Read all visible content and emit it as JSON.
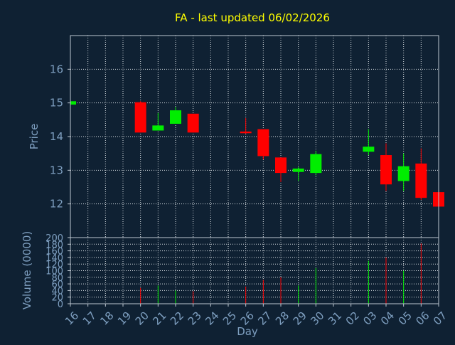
{
  "chart_data": {
    "type": "candlestick",
    "title": "FA - last updated 06/02/2026",
    "xlabel": "Day",
    "price_panel": {
      "ylabel": "Price",
      "ylim": [
        11.0,
        17.0
      ],
      "yticks": [
        12,
        13,
        14,
        15,
        16
      ]
    },
    "volume_panel": {
      "ylabel": "Volume (0000)",
      "ylim": [
        0,
        200
      ],
      "yticks": [
        0,
        20,
        40,
        60,
        80,
        100,
        120,
        140,
        160,
        180,
        200
      ]
    },
    "x_ticks": [
      "16",
      "17",
      "18",
      "19",
      "20",
      "21",
      "22",
      "23",
      "24",
      "25",
      "26",
      "27",
      "28",
      "29",
      "30",
      "31",
      "02",
      "03",
      "04",
      "05",
      "06",
      "07"
    ],
    "grid": true,
    "colors": {
      "up": "#00ee00",
      "down": "#ff0000",
      "title": "#ffff00",
      "axis_text": "#7e9fc0",
      "background": "#0f2133"
    },
    "candles": [
      {
        "slot": 0,
        "date": "16",
        "open": 14.95,
        "high": 15.05,
        "low": 14.95,
        "close": 15.05,
        "volume": 0
      },
      {
        "slot": 4,
        "date": "20",
        "open": 15.02,
        "high": 15.05,
        "low": 14.12,
        "close": 14.12,
        "volume": 48
      },
      {
        "slot": 5,
        "date": "21",
        "open": 14.18,
        "high": 14.7,
        "low": 14.18,
        "close": 14.33,
        "volume": 55
      },
      {
        "slot": 6,
        "date": "22",
        "open": 14.38,
        "high": 14.88,
        "low": 14.38,
        "close": 14.78,
        "volume": 40
      },
      {
        "slot": 7,
        "date": "23",
        "open": 14.68,
        "high": 14.68,
        "low": 14.12,
        "close": 14.12,
        "volume": 38
      },
      {
        "slot": 10,
        "date": "26",
        "open": 14.15,
        "high": 14.55,
        "low": 14.08,
        "close": 14.1,
        "volume": 52
      },
      {
        "slot": 11,
        "date": "27",
        "open": 14.22,
        "high": 14.22,
        "low": 13.32,
        "close": 13.42,
        "volume": 72
      },
      {
        "slot": 12,
        "date": "28",
        "open": 13.38,
        "high": 13.38,
        "low": 12.65,
        "close": 12.92,
        "volume": 80
      },
      {
        "slot": 13,
        "date": "29",
        "open": 12.95,
        "high": 13.1,
        "low": 12.68,
        "close": 13.05,
        "volume": 55
      },
      {
        "slot": 14,
        "date": "30",
        "open": 12.92,
        "high": 13.58,
        "low": 12.85,
        "close": 13.48,
        "volume": 108
      },
      {
        "slot": 17,
        "date": "02",
        "open": 13.55,
        "high": 14.22,
        "low": 13.45,
        "close": 13.7,
        "volume": 130
      },
      {
        "slot": 18,
        "date": "03",
        "open": 13.45,
        "high": 13.8,
        "low": 12.38,
        "close": 12.58,
        "volume": 140
      },
      {
        "slot": 19,
        "date": "04",
        "open": 12.68,
        "high": 13.5,
        "low": 12.38,
        "close": 13.12,
        "volume": 100
      },
      {
        "slot": 20,
        "date": "05",
        "open": 13.2,
        "high": 13.65,
        "low": 12.12,
        "close": 12.18,
        "volume": 182
      },
      {
        "slot": 21,
        "date": "06",
        "open": 12.35,
        "high": 12.55,
        "low": 11.9,
        "close": 11.92,
        "volume": 105
      }
    ]
  }
}
